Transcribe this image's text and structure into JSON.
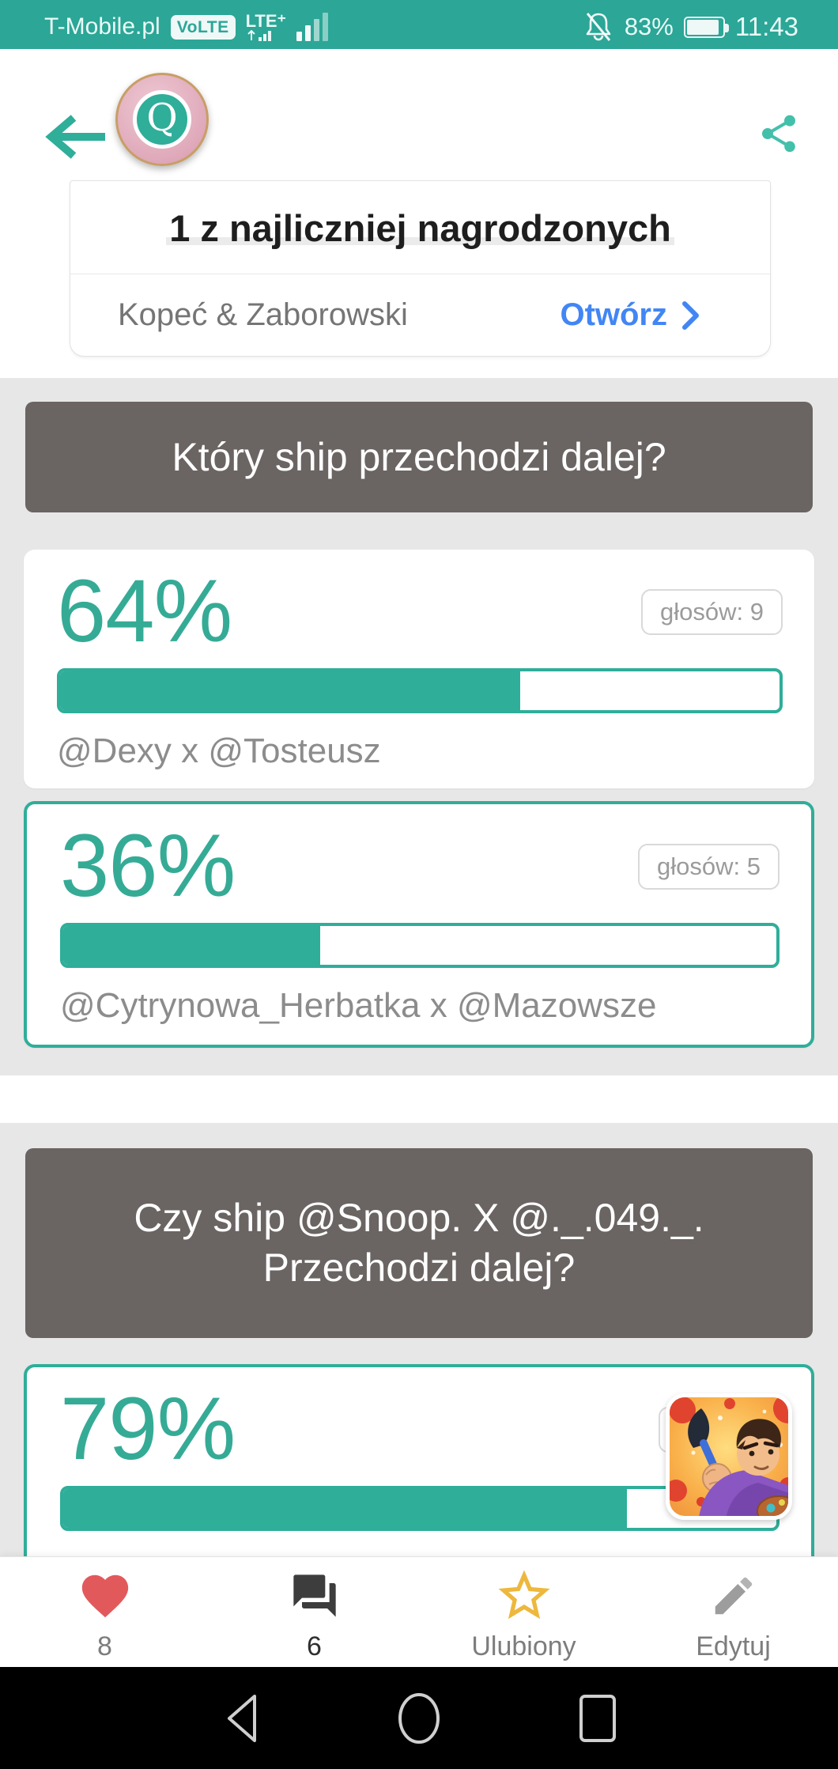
{
  "colors": {
    "accent_teal": "#2fae9a",
    "status_bar_bg": "#2ba697",
    "banner_bg": "#6a6462",
    "section_bg": "#e8e7e7",
    "cta_blue": "#4286f5",
    "heart_red": "#e2595c",
    "star_gold": "#edb83d",
    "chat_dark": "#3d3d3d",
    "pencil_gray": "#9d9d9d"
  },
  "status_bar": {
    "carrier": "T-Mobile.pl",
    "volte": "VoLTE",
    "network": "LTE⁺",
    "battery_percent": "83%",
    "time": "11:43"
  },
  "header": {
    "logo_letter": "Q"
  },
  "ad": {
    "headline": "1 z najliczniej nagrodzonych",
    "advertiser": "Kopeć & Zaborowski",
    "cta": "Otwórz"
  },
  "polls": [
    {
      "question": "Który ship przechodzi dalej?",
      "options": [
        {
          "percent": "64%",
          "votes": "głosów: 9",
          "name": "@Dexy x @Tosteusz",
          "fill": 64,
          "selected": false
        },
        {
          "percent": "36%",
          "votes": "głosów: 5",
          "name": "@Cytrynowa_Herbatka x @Mazowsze",
          "fill": 36,
          "selected": true
        }
      ]
    },
    {
      "question": "Czy ship @Snoop. X @._.049._. Przechodzi dalej?",
      "options": [
        {
          "percent": "79%",
          "votes": "głosów:",
          "fill": 79,
          "selected": true,
          "avatar": "painter-boy-avatar"
        }
      ]
    }
  ],
  "bottom_nav": {
    "likes": "8",
    "comments": "6",
    "favorite": "Ulubiony",
    "edit": "Edytuj"
  }
}
